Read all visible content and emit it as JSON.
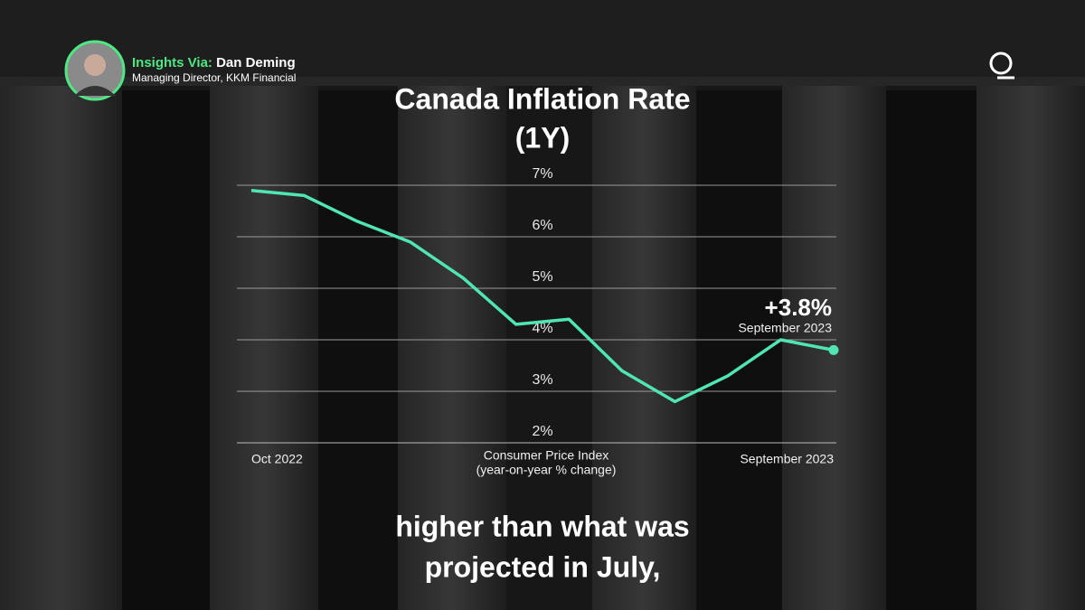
{
  "overlay": {
    "speaker_label": "Insights Via:",
    "speaker_name": "Dan Deming",
    "speaker_role": "Managing Director, KKM Financial"
  },
  "caption": {
    "lines": [
      "higher than what was",
      "projected in July,"
    ]
  },
  "chart_data": {
    "type": "line",
    "title": "Canada Inflation Rate",
    "subtitle": "(1Y)",
    "x_label": "Consumer Price Index",
    "x_label_note": "(year-on-year % change)",
    "categories": [
      "Oct 2022",
      null,
      null,
      null,
      null,
      null,
      null,
      null,
      null,
      null,
      null,
      "September 2023"
    ],
    "values": [
      6.9,
      6.8,
      6.3,
      5.9,
      5.2,
      4.3,
      4.4,
      3.4,
      2.8,
      3.3,
      4.0,
      3.8
    ],
    "color": "#4fe6b4",
    "ylim": [
      2,
      7
    ],
    "yticks": [
      {
        "value": 2,
        "label": "2%"
      },
      {
        "value": 3,
        "label": "3%"
      },
      {
        "value": 4,
        "label": "4%"
      },
      {
        "value": 5,
        "label": "5%"
      },
      {
        "value": 6,
        "label": "6%"
      },
      {
        "value": 7,
        "label": "7%"
      }
    ],
    "grid": true,
    "annotation": {
      "label": "+3.8%",
      "date": "September 2023"
    }
  }
}
